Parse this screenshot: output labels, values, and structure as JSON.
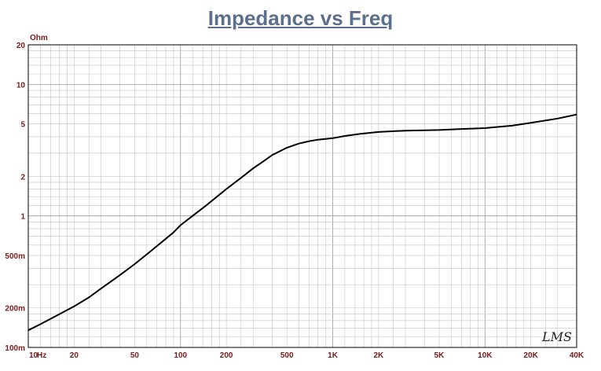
{
  "chart_data": {
    "type": "line",
    "title": "Impedance vs Freq",
    "ylabel_unit": "Ohm",
    "x_scale": "log",
    "y_scale": "log",
    "xlim": [
      10,
      40000
    ],
    "ylim": [
      0.1,
      20
    ],
    "grid": true,
    "x_ticks": [
      {
        "v": 10,
        "label": "10"
      },
      {
        "v": 20,
        "label": "20"
      },
      {
        "v": 50,
        "label": "50"
      },
      {
        "v": 100,
        "label": "100"
      },
      {
        "v": 200,
        "label": "200"
      },
      {
        "v": 500,
        "label": "500"
      },
      {
        "v": 1000,
        "label": "1K"
      },
      {
        "v": 2000,
        "label": "2K"
      },
      {
        "v": 5000,
        "label": "5K"
      },
      {
        "v": 10000,
        "label": "10K"
      },
      {
        "v": 20000,
        "label": "20K"
      },
      {
        "v": 40000,
        "label": "40K"
      }
    ],
    "x_unit": "Hz",
    "y_ticks": [
      {
        "v": 0.1,
        "label": "100m"
      },
      {
        "v": 0.2,
        "label": "200m"
      },
      {
        "v": 0.5,
        "label": "500m"
      },
      {
        "v": 1,
        "label": "1"
      },
      {
        "v": 2,
        "label": "2"
      },
      {
        "v": 5,
        "label": "5"
      },
      {
        "v": 10,
        "label": "10"
      },
      {
        "v": 20,
        "label": "20"
      }
    ],
    "series": [
      {
        "color": "#000000",
        "x": [
          10,
          12,
          15,
          20,
          25,
          30,
          40,
          50,
          60,
          70,
          80,
          90,
          100,
          120,
          150,
          200,
          250,
          300,
          350,
          400,
          500,
          600,
          700,
          800,
          1000,
          1200,
          1500,
          2000,
          3000,
          5000,
          7000,
          10000,
          15000,
          20000,
          30000,
          40000
        ],
        "y": [
          0.135,
          0.15,
          0.172,
          0.205,
          0.24,
          0.28,
          0.355,
          0.43,
          0.51,
          0.59,
          0.67,
          0.75,
          0.85,
          1.0,
          1.22,
          1.6,
          1.95,
          2.3,
          2.6,
          2.9,
          3.3,
          3.55,
          3.7,
          3.8,
          3.9,
          4.05,
          4.2,
          4.35,
          4.45,
          4.5,
          4.58,
          4.65,
          4.85,
          5.1,
          5.5,
          5.9
        ]
      }
    ]
  },
  "logo": {
    "text": "LMS"
  }
}
